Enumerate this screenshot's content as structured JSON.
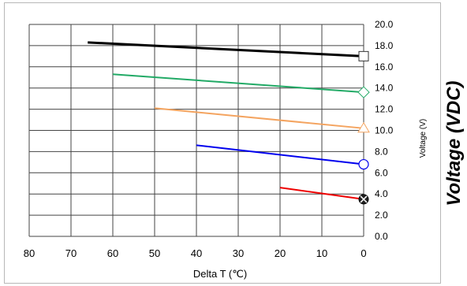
{
  "chart_data": {
    "type": "line",
    "title": "",
    "xlabel": "Delta T (℃)",
    "ylabel": "Voltage (V)",
    "outer_label": "Voltage (VDC)",
    "xlim": [
      80,
      0
    ],
    "ylim": [
      0,
      20
    ],
    "x_ticks": [
      "80",
      "70",
      "60",
      "50",
      "40",
      "30",
      "20",
      "10",
      "0"
    ],
    "y_ticks": [
      "0.0",
      "2.0",
      "4.0",
      "6.0",
      "8.0",
      "10.0",
      "12.0",
      "14.0",
      "16.0",
      "18.0",
      "20.0"
    ],
    "grid": true,
    "series": [
      {
        "color": "#000000",
        "marker": "square",
        "x": [
          66,
          0
        ],
        "y": [
          18.3,
          17.0
        ]
      },
      {
        "color": "#22aa66",
        "marker": "diamond",
        "x": [
          60,
          0
        ],
        "y": [
          15.3,
          13.6
        ]
      },
      {
        "color": "#f4a460",
        "marker": "triangle",
        "x": [
          50,
          0
        ],
        "y": [
          12.1,
          10.2
        ]
      },
      {
        "color": "#0000ee",
        "marker": "circle",
        "x": [
          40,
          0
        ],
        "y": [
          8.6,
          6.8
        ]
      },
      {
        "color": "#ee0000",
        "marker": "x-circle",
        "x": [
          20,
          0
        ],
        "y": [
          4.6,
          3.5
        ]
      }
    ]
  }
}
